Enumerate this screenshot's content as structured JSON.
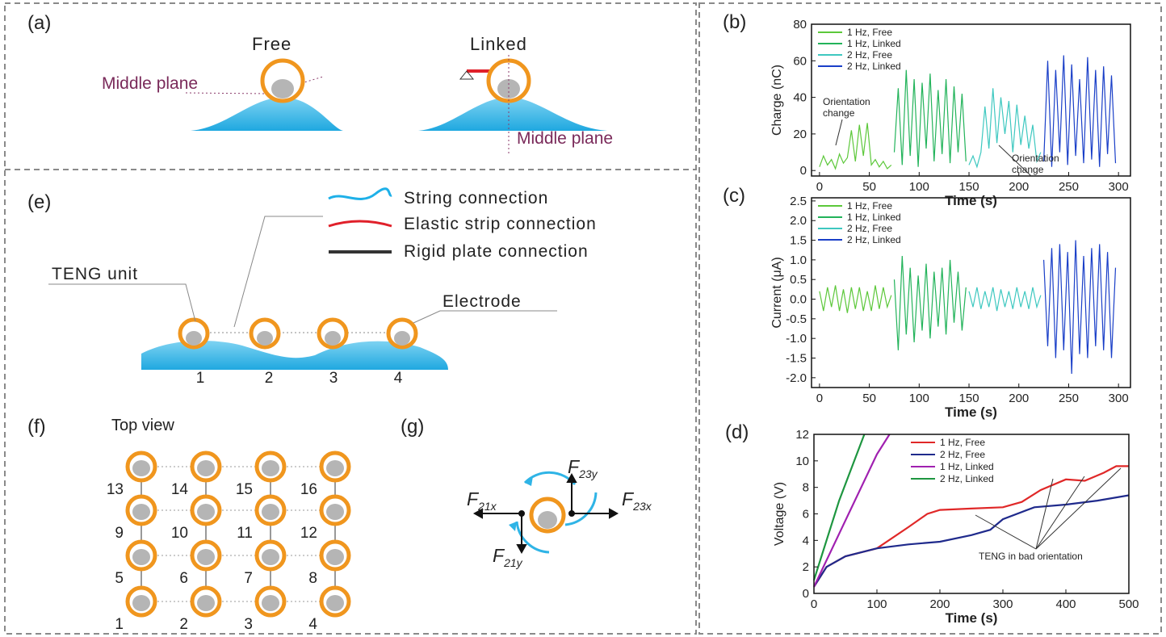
{
  "panels": {
    "a": {
      "label": "(a)",
      "free": "Free",
      "linked": "Linked",
      "middle_plane_free": "Middle plane",
      "middle_plane_linked": "Middle plane"
    },
    "e": {
      "label": "(e)",
      "legend": [
        "String connection",
        "Elastic strip connection",
        "Rigid plate connection"
      ],
      "teng_unit": "TENG unit",
      "electrode": "Electrode",
      "numbers": [
        "1",
        "2",
        "3",
        "4"
      ]
    },
    "f": {
      "label": "(f)",
      "title": "Top view",
      "numbers": [
        "13",
        "14",
        "15",
        "16",
        "9",
        "10",
        "11",
        "12",
        "5",
        "6",
        "7",
        "8",
        "1",
        "2",
        "3",
        "4"
      ]
    },
    "g": {
      "label": "(g)",
      "forces": [
        {
          "symbol": "F",
          "sub": "23y"
        },
        {
          "symbol": "F",
          "sub": "21x"
        },
        {
          "symbol": "F",
          "sub": "23x"
        },
        {
          "symbol": "F",
          "sub": "21y"
        }
      ]
    }
  },
  "chart_data": [
    {
      "type": "line",
      "panel_label": "(b)",
      "x_label": "Time (s)",
      "y_label": "Charge (nC)",
      "legend": "upper left",
      "xlim": [
        -8,
        312
      ],
      "xticks": [
        0,
        50,
        100,
        150,
        200,
        250,
        300
      ],
      "ylim": [
        -3,
        80
      ],
      "yticks": [
        0,
        20,
        40,
        60,
        80
      ],
      "annotations": [
        "Orientation change",
        "Orientation change"
      ],
      "series": [
        {
          "name": "1 Hz, Free",
          "color": "#5cc83a",
          "x": [
            0,
            4,
            8,
            12,
            16,
            20,
            24,
            28,
            32,
            36,
            40,
            44,
            48,
            52,
            56,
            60,
            64,
            68,
            72
          ],
          "values": [
            2,
            8,
            3,
            6,
            1,
            9,
            4,
            7,
            22,
            5,
            25,
            8,
            26,
            3,
            6,
            2,
            5,
            1,
            3
          ]
        },
        {
          "name": "1 Hz, Linked",
          "color": "#22b35a",
          "x": [
            75,
            79,
            83,
            87,
            91,
            95,
            99,
            103,
            107,
            111,
            115,
            119,
            123,
            127,
            131,
            135,
            139,
            143,
            147
          ],
          "values": [
            10,
            45,
            3,
            55,
            8,
            50,
            2,
            48,
            12,
            53,
            5,
            44,
            9,
            50,
            4,
            46,
            10,
            42,
            5
          ]
        },
        {
          "name": "2 Hz, Free",
          "color": "#3ec8c0",
          "x": [
            150,
            154,
            158,
            162,
            166,
            170,
            174,
            178,
            182,
            186,
            190,
            194,
            198,
            202,
            206,
            210,
            214,
            218,
            222
          ],
          "values": [
            3,
            8,
            2,
            10,
            35,
            12,
            45,
            15,
            40,
            20,
            38,
            10,
            36,
            14,
            30,
            12,
            25,
            5,
            10
          ]
        },
        {
          "name": "2 Hz, Linked",
          "color": "#1a3fc8",
          "x": [
            225,
            229,
            233,
            237,
            241,
            245,
            249,
            253,
            257,
            261,
            265,
            269,
            273,
            277,
            281,
            285,
            289,
            293,
            297
          ],
          "values": [
            5,
            60,
            2,
            55,
            10,
            63,
            3,
            58,
            8,
            50,
            4,
            62,
            6,
            55,
            2,
            57,
            9,
            52,
            4
          ]
        }
      ]
    },
    {
      "type": "line",
      "panel_label": "(c)",
      "x_label": "Time (s)",
      "y_label": "Current (μA)",
      "legend": "upper left",
      "xlim": [
        -8,
        312
      ],
      "xticks": [
        0,
        50,
        100,
        150,
        200,
        250,
        300
      ],
      "ylim": [
        -2.25,
        2.58
      ],
      "yticks": [
        {
          "value": -2,
          "label": "-2.0"
        },
        -1.5,
        {
          "value": -1,
          "label": "-1.0"
        },
        -0.5,
        {
          "value": 0,
          "label": "0.0"
        },
        0.5,
        {
          "value": 1,
          "label": "1.0"
        },
        1.5,
        {
          "value": 2,
          "label": "2.0"
        },
        2.5
      ],
      "series": [
        {
          "name": "1 Hz, Free",
          "color": "#5cc83a",
          "x": [
            0,
            4,
            8,
            12,
            16,
            20,
            24,
            28,
            32,
            36,
            40,
            44,
            48,
            52,
            56,
            60,
            64,
            68,
            72
          ],
          "values": [
            0.2,
            -0.3,
            0.3,
            -0.2,
            0.35,
            -0.3,
            0.25,
            -0.35,
            0.3,
            -0.25,
            0.3,
            -0.3,
            0.2,
            -0.3,
            0.35,
            -0.25,
            0.3,
            -0.2,
            0.1
          ]
        },
        {
          "name": "1 Hz, Linked",
          "color": "#22b35a",
          "x": [
            75,
            79,
            83,
            87,
            91,
            95,
            99,
            103,
            107,
            111,
            115,
            119,
            123,
            127,
            131,
            135,
            139,
            143,
            147
          ],
          "values": [
            0.5,
            -1.3,
            1.1,
            -0.9,
            0.8,
            -1.1,
            0.6,
            -0.8,
            0.9,
            -1,
            0.7,
            -0.7,
            0.8,
            -0.9,
            1,
            -0.6,
            0.7,
            -0.8,
            0.3
          ]
        },
        {
          "name": "2 Hz, Free",
          "color": "#3ec8c0",
          "x": [
            150,
            154,
            158,
            162,
            166,
            170,
            174,
            178,
            182,
            186,
            190,
            194,
            198,
            202,
            206,
            210,
            214,
            218,
            222
          ],
          "values": [
            0.2,
            -0.2,
            0.3,
            -0.25,
            0.2,
            -0.2,
            0.3,
            -0.3,
            0.25,
            -0.2,
            0.2,
            -0.25,
            0.3,
            -0.2,
            0.2,
            -0.25,
            0.3,
            -0.2,
            0.1
          ]
        },
        {
          "name": "2 Hz, Linked",
          "color": "#1a3fc8",
          "x": [
            225,
            229,
            233,
            237,
            241,
            245,
            249,
            253,
            257,
            261,
            265,
            269,
            273,
            277,
            281,
            285,
            289,
            293,
            297
          ],
          "values": [
            1,
            -1.2,
            1.3,
            -1.5,
            1.4,
            -1.3,
            1.2,
            -1.9,
            1.5,
            -1.4,
            1.1,
            -1.5,
            1.3,
            -1.2,
            1.4,
            -1.3,
            1.2,
            -1.5,
            0.8
          ]
        }
      ]
    },
    {
      "type": "line",
      "panel_label": "(d)",
      "x_label": "Time (s)",
      "y_label": "Voltage (V)",
      "legend": "upper center",
      "xlim": [
        0,
        500
      ],
      "xticks": [
        0,
        100,
        200,
        300,
        400,
        500
      ],
      "ylim": [
        0,
        12
      ],
      "yticks": [
        0,
        2,
        4,
        6,
        8,
        10,
        12
      ],
      "annotations": [
        "TENG in bad orientation"
      ],
      "series": [
        {
          "name": "1 Hz, Free",
          "color": "#e02828",
          "x": [
            0,
            20,
            50,
            100,
            150,
            180,
            200,
            250,
            300,
            330,
            360,
            400,
            430,
            460,
            480,
            500
          ],
          "values": [
            0.5,
            2,
            2.8,
            3.4,
            5,
            6,
            6.3,
            6.4,
            6.5,
            6.9,
            7.8,
            8.6,
            8.5,
            9.1,
            9.6,
            9.6
          ]
        },
        {
          "name": "2 Hz, Free",
          "color": "#1f2a8c",
          "x": [
            0,
            20,
            50,
            100,
            150,
            200,
            250,
            280,
            300,
            350,
            400,
            450,
            500
          ],
          "values": [
            0.5,
            2,
            2.8,
            3.4,
            3.7,
            3.9,
            4.4,
            4.8,
            5.6,
            6.5,
            6.7,
            7,
            7.4
          ]
        },
        {
          "name": "1 Hz, Linked",
          "color": "#a020b0",
          "x": [
            0,
            25,
            50,
            75,
            100,
            120
          ],
          "values": [
            0.5,
            3,
            5.5,
            8,
            10.5,
            12
          ]
        },
        {
          "name": "2 Hz, Linked",
          "color": "#1e9640",
          "x": [
            0,
            20,
            40,
            60,
            80
          ],
          "values": [
            1,
            4,
            7,
            9.5,
            12
          ]
        }
      ]
    }
  ]
}
